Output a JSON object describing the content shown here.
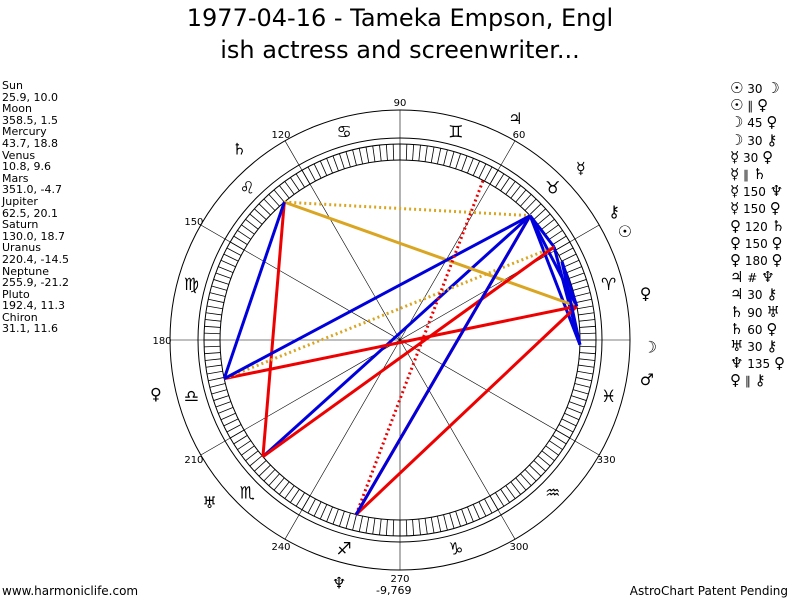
{
  "title": {
    "line1": "1977-04-16 - Tameka Empson, Engl",
    "line2": "ish actress and screenwriter..."
  },
  "planets": [
    {
      "name": "Sun",
      "values": "25.9, 10.0",
      "longitude": 25.9,
      "glyph": "☉"
    },
    {
      "name": "Moon",
      "values": "358.5, 1.5",
      "longitude": 358.5,
      "glyph": "☽"
    },
    {
      "name": "Mercury",
      "values": "43.7, 18.8",
      "longitude": 43.7,
      "glyph": "☿"
    },
    {
      "name": "Venus",
      "values": "10.8, 9.6",
      "longitude": 10.8,
      "glyph": "♀"
    },
    {
      "name": "Mars",
      "values": "351.0, -4.7",
      "longitude": 351.0,
      "glyph": "♂"
    },
    {
      "name": "Jupiter",
      "values": "62.5, 20.1",
      "longitude": 62.5,
      "glyph": "♃"
    },
    {
      "name": "Saturn",
      "values": "130.0, 18.7",
      "longitude": 130.0,
      "glyph": "♄"
    },
    {
      "name": "Uranus",
      "values": "220.4, -14.5",
      "longitude": 220.4,
      "glyph": "♅"
    },
    {
      "name": "Neptune",
      "values": "255.9, -21.2",
      "longitude": 255.9,
      "glyph": "♆"
    },
    {
      "name": "Pluto",
      "values": "192.4, 11.3",
      "longitude": 192.4,
      "glyph": "♀"
    },
    {
      "name": "Chiron",
      "values": "31.1, 11.6",
      "longitude": 31.1,
      "glyph": "⚷"
    }
  ],
  "aspects": [
    {
      "p1": "☉",
      "angle": "30",
      "p2": "☽"
    },
    {
      "p1": "☉",
      "angle": "∥",
      "p2": "♀"
    },
    {
      "p1": "☽",
      "angle": "45",
      "p2": "♀"
    },
    {
      "p1": "☽",
      "angle": "30",
      "p2": "⚷"
    },
    {
      "p1": "☿",
      "angle": "30",
      "p2": "♀"
    },
    {
      "p1": "☿",
      "angle": "∥",
      "p2": "♄"
    },
    {
      "p1": "☿",
      "angle": "150",
      "p2": "♆"
    },
    {
      "p1": "☿",
      "angle": "150",
      "p2": "♀"
    },
    {
      "p1": "♀",
      "angle": "120",
      "p2": "♄"
    },
    {
      "p1": "♀",
      "angle": "150",
      "p2": "♀"
    },
    {
      "p1": "♀",
      "angle": "180",
      "p2": "♀"
    },
    {
      "p1": "♃",
      "angle": "#",
      "p2": "♆"
    },
    {
      "p1": "♃",
      "angle": "30",
      "p2": "⚷"
    },
    {
      "p1": "♄",
      "angle": "90",
      "p2": "♅"
    },
    {
      "p1": "♄",
      "angle": "60",
      "p2": "♀"
    },
    {
      "p1": "♅",
      "angle": "30",
      "p2": "⚷"
    },
    {
      "p1": "♆",
      "angle": "135",
      "p2": "♀"
    },
    {
      "p1": "♀",
      "angle": "∥",
      "p2": "⚷"
    }
  ],
  "wheel": {
    "degree_labels": [
      "90",
      "120",
      "150",
      "180",
      "210",
      "240",
      "270",
      "300",
      "330",
      "60"
    ],
    "sign_glyphs": [
      "♈",
      "♉",
      "♊",
      "♋",
      "♌",
      "♍",
      "♎",
      "♏",
      "♐",
      "♑",
      "♒",
      "♓"
    ],
    "colors": {
      "blue": "#0000dd",
      "red": "#ee0000",
      "gold": "#daa520"
    }
  },
  "footer": {
    "left": "www.harmoniclife.com",
    "center": "-9,769",
    "right": "AstroChart Patent Pending"
  }
}
